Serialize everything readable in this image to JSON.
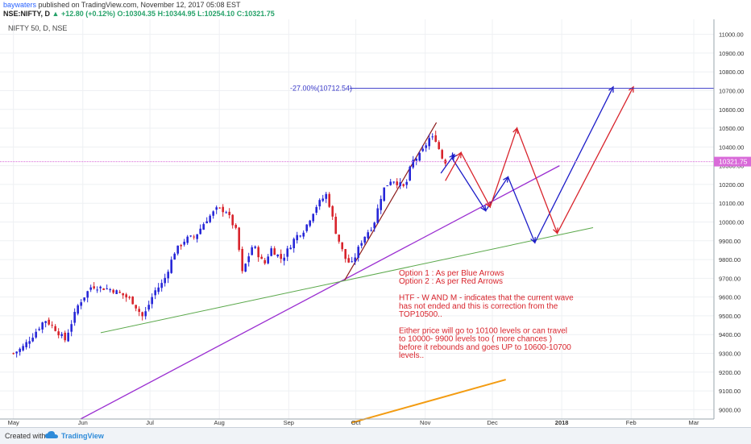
{
  "header": {
    "author": "baywaters",
    "published": "published on TradingView.com, November 12, 2017 05:08 EST",
    "symbol_line": "NSE:NIFTY, D",
    "change": "▲ +12.80 (+0.12%)",
    "ohlc_open": "O:10304.35",
    "ohlc_high": "H:10344.95",
    "ohlc_low": "L:10254.10",
    "ohlc_close": "C:10321.75"
  },
  "footer": {
    "created": "Created with",
    "brand": "TradingView"
  },
  "chart_data": {
    "type": "candlestick",
    "title": "NIFTY 50, D, NSE",
    "y_ticks": [
      9000,
      9100,
      9200,
      9300,
      9400,
      9500,
      9600,
      9700,
      9800,
      9900,
      10000,
      10100,
      10200,
      10300,
      10400,
      10500,
      10600,
      10700,
      10800,
      10900,
      11000
    ],
    "ylim": [
      8950,
      11080
    ],
    "x_months": [
      "May",
      "Jun",
      "Jul",
      "Aug",
      "Sep",
      "Oct",
      "Nov",
      "Dec",
      "2018",
      "Feb",
      "Mar"
    ],
    "current_price": "10321.75",
    "fib_label": "-27.00%(10712.54)",
    "fib_level": 10712.54,
    "close_path": [
      [
        "2017-05-01",
        9300
      ],
      [
        "2017-05-05",
        9330
      ],
      [
        "2017-05-10",
        9400
      ],
      [
        "2017-05-15",
        9480
      ],
      [
        "2017-05-19",
        9440
      ],
      [
        "2017-05-24",
        9370
      ],
      [
        "2017-05-30",
        9560
      ],
      [
        "2017-06-05",
        9660
      ],
      [
        "2017-06-09",
        9650
      ],
      [
        "2017-06-14",
        9640
      ],
      [
        "2017-06-19",
        9610
      ],
      [
        "2017-06-23",
        9580
      ],
      [
        "2017-06-28",
        9490
      ],
      [
        "2017-07-03",
        9630
      ],
      [
        "2017-07-07",
        9680
      ],
      [
        "2017-07-12",
        9840
      ],
      [
        "2017-07-17",
        9910
      ],
      [
        "2017-07-21",
        9920
      ],
      [
        "2017-07-26",
        10010
      ],
      [
        "2017-07-31",
        10070
      ],
      [
        "2017-08-04",
        10060
      ],
      [
        "2017-08-09",
        9940
      ],
      [
        "2017-08-11",
        9720
      ],
      [
        "2017-08-16",
        9880
      ],
      [
        "2017-08-21",
        9770
      ],
      [
        "2017-08-24",
        9860
      ],
      [
        "2017-08-29",
        9800
      ],
      [
        "2017-09-04",
        9920
      ],
      [
        "2017-09-08",
        9960
      ],
      [
        "2017-09-13",
        10080
      ],
      [
        "2017-09-18",
        10150
      ],
      [
        "2017-09-22",
        9950
      ],
      [
        "2017-09-26",
        9810
      ],
      [
        "2017-09-29",
        9770
      ],
      [
        "2017-10-04",
        9910
      ],
      [
        "2017-10-09",
        9990
      ],
      [
        "2017-10-13",
        10170
      ],
      [
        "2017-10-17",
        10230
      ],
      [
        "2017-10-23",
        10180
      ],
      [
        "2017-10-26",
        10320
      ],
      [
        "2017-10-30",
        10360
      ],
      [
        "2017-11-03",
        10450
      ],
      [
        "2017-11-06",
        10440
      ],
      [
        "2017-11-08",
        10350
      ],
      [
        "2017-11-10",
        10322
      ]
    ],
    "annotation_lines": [
      "Option 1 : As per Blue Arrows",
      "Option 2 : As per Red Arrows",
      "",
      "HTF - W AND M - indicates that the current wave",
      "has not ended and this is correction from the",
      "TOP10500..",
      "",
      "Either price will go to 10100 levels or can travel",
      "to 10000- 9900 levels too ( more chances )",
      "before it rebounds and goes UP to 10600-10700",
      "levels.."
    ],
    "blue_projection": [
      [
        "2017-11-08",
        10260
      ],
      [
        "2017-11-14",
        10360
      ],
      [
        "2017-11-13",
        10340
      ],
      [
        "2017-11-28",
        10060
      ],
      [
        "2017-12-08",
        10240
      ],
      [
        "2017-12-20",
        9890
      ],
      [
        "2018-01-24",
        10720
      ]
    ],
    "red_projection": [
      [
        "2017-11-10",
        10220
      ],
      [
        "2017-11-17",
        10370
      ],
      [
        "2017-11-30",
        10080
      ],
      [
        "2017-12-12",
        10500
      ],
      [
        "2017-12-30",
        9940
      ],
      [
        "2018-02-02",
        10720
      ]
    ],
    "colors": {
      "up": "#2727d8",
      "down": "#d8242c",
      "blue": "#1c1cc8",
      "red": "#d8242c",
      "purple": "#9b2fd1",
      "green": "#5aa84a",
      "orange": "#f39c12",
      "brown": "#8b1a1a",
      "price_line": "#d96ad9"
    }
  }
}
